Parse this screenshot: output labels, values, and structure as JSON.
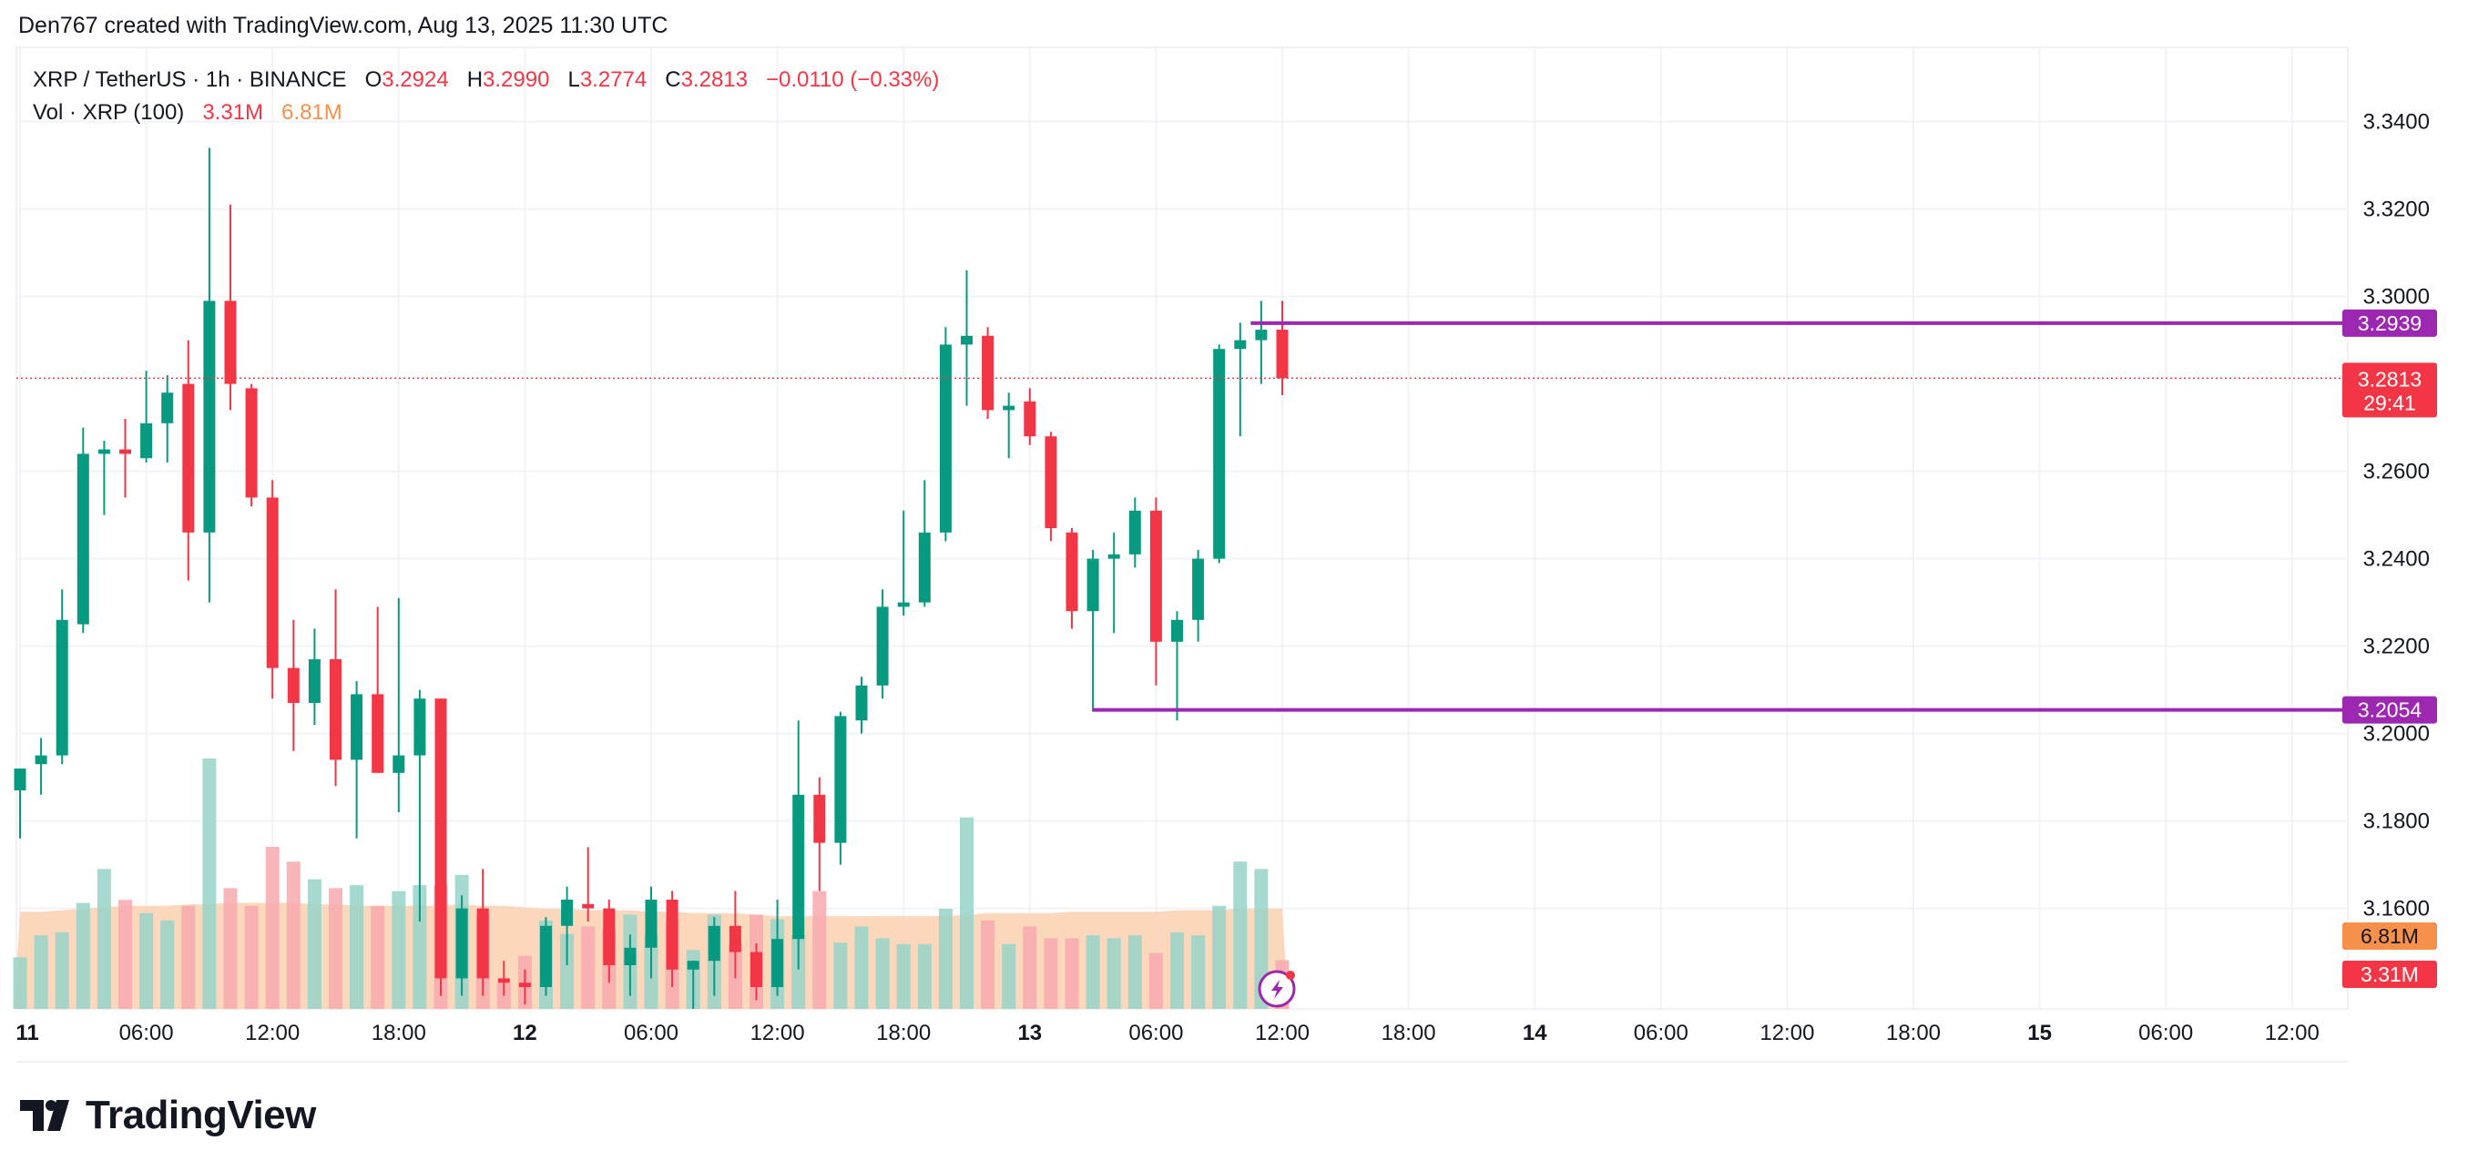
{
  "caption": "Den767 created with TradingView.com, Aug 13, 2025 11:30 UTC",
  "legend": {
    "symbol": "XRP / TetherUS · 1h · BINANCE",
    "o_label": "O",
    "o_value": "3.2924",
    "h_label": "H",
    "h_value": "3.2990",
    "l_label": "L",
    "l_value": "3.2774",
    "c_label": "C",
    "c_value": "3.2813",
    "change": "−0.0110 (−0.33%)",
    "vol_label": "Vol · XRP (100)",
    "vol_value": "3.31M",
    "vol_ma_value": "6.81M"
  },
  "brand": {
    "name": "TradingView"
  },
  "colors": {
    "up": "#089981",
    "down": "#f23645",
    "vol_up": "#97d4c9",
    "vol_down": "#f7a9ae",
    "vol_ma_fill": "#fad0b0",
    "level_line": "#9c27b0",
    "grid": "#f0f3fa",
    "text": "#131722"
  },
  "chart_data": {
    "type": "candlestick",
    "y_range": [
      3.137,
      3.357
    ],
    "y_ticks": [
      "3.3400",
      "3.3200",
      "3.3000",
      "3.2600",
      "3.2400",
      "3.2200",
      "3.2000",
      "3.1800",
      "3.1600"
    ],
    "x_ticks": [
      "11",
      "06:00",
      "12:00",
      "18:00",
      "12",
      "06:00",
      "12:00",
      "18:00",
      "13",
      "06:00",
      "12:00",
      "18:00",
      "14",
      "06:00",
      "12:00",
      "18:00",
      "15",
      "06:00",
      "12:00"
    ],
    "candles": [
      {
        "o": 3.187,
        "h": 3.192,
        "l": 3.176,
        "c": 3.192
      },
      {
        "o": 3.193,
        "h": 3.199,
        "l": 3.186,
        "c": 3.195
      },
      {
        "o": 3.195,
        "h": 3.233,
        "l": 3.193,
        "c": 3.226
      },
      {
        "o": 3.225,
        "h": 3.27,
        "l": 3.223,
        "c": 3.264
      },
      {
        "o": 3.264,
        "h": 3.267,
        "l": 3.25,
        "c": 3.265
      },
      {
        "o": 3.265,
        "h": 3.272,
        "l": 3.254,
        "c": 3.264
      },
      {
        "o": 3.263,
        "h": 3.283,
        "l": 3.262,
        "c": 3.271
      },
      {
        "o": 3.271,
        "h": 3.282,
        "l": 3.262,
        "c": 3.278
      },
      {
        "o": 3.28,
        "h": 3.29,
        "l": 3.235,
        "c": 3.246
      },
      {
        "o": 3.246,
        "h": 3.334,
        "l": 3.23,
        "c": 3.299
      },
      {
        "o": 3.299,
        "h": 3.321,
        "l": 3.274,
        "c": 3.28
      },
      {
        "o": 3.279,
        "h": 3.28,
        "l": 3.252,
        "c": 3.254
      },
      {
        "o": 3.254,
        "h": 3.258,
        "l": 3.208,
        "c": 3.215
      },
      {
        "o": 3.215,
        "h": 3.226,
        "l": 3.196,
        "c": 3.207
      },
      {
        "o": 3.207,
        "h": 3.224,
        "l": 3.202,
        "c": 3.217
      },
      {
        "o": 3.217,
        "h": 3.233,
        "l": 3.188,
        "c": 3.194
      },
      {
        "o": 3.194,
        "h": 3.212,
        "l": 3.176,
        "c": 3.209
      },
      {
        "o": 3.209,
        "h": 3.229,
        "l": 3.192,
        "c": 3.191
      },
      {
        "o": 3.191,
        "h": 3.231,
        "l": 3.182,
        "c": 3.195
      },
      {
        "o": 3.195,
        "h": 3.21,
        "l": 3.157,
        "c": 3.208
      },
      {
        "o": 3.208,
        "h": 3.208,
        "l": 3.14,
        "c": 3.144
      },
      {
        "o": 3.144,
        "h": 3.163,
        "l": 3.14,
        "c": 3.16
      },
      {
        "o": 3.16,
        "h": 3.169,
        "l": 3.14,
        "c": 3.144
      },
      {
        "o": 3.144,
        "h": 3.148,
        "l": 3.14,
        "c": 3.143
      },
      {
        "o": 3.143,
        "h": 3.146,
        "l": 3.138,
        "c": 3.142
      },
      {
        "o": 3.142,
        "h": 3.158,
        "l": 3.14,
        "c": 3.156
      },
      {
        "o": 3.156,
        "h": 3.165,
        "l": 3.147,
        "c": 3.162
      },
      {
        "o": 3.161,
        "h": 3.174,
        "l": 3.157,
        "c": 3.16
      },
      {
        "o": 3.16,
        "h": 3.162,
        "l": 3.143,
        "c": 3.147
      },
      {
        "o": 3.147,
        "h": 3.154,
        "l": 3.14,
        "c": 3.151
      },
      {
        "o": 3.151,
        "h": 3.165,
        "l": 3.144,
        "c": 3.162
      },
      {
        "o": 3.162,
        "h": 3.164,
        "l": 3.142,
        "c": 3.146
      },
      {
        "o": 3.146,
        "h": 3.148,
        "l": 3.137,
        "c": 3.148
      },
      {
        "o": 3.148,
        "h": 3.158,
        "l": 3.14,
        "c": 3.156
      },
      {
        "o": 3.156,
        "h": 3.164,
        "l": 3.144,
        "c": 3.15
      },
      {
        "o": 3.15,
        "h": 3.152,
        "l": 3.139,
        "c": 3.142
      },
      {
        "o": 3.142,
        "h": 3.162,
        "l": 3.14,
        "c": 3.153
      },
      {
        "o": 3.153,
        "h": 3.203,
        "l": 3.146,
        "c": 3.186
      },
      {
        "o": 3.186,
        "h": 3.19,
        "l": 3.164,
        "c": 3.175
      },
      {
        "o": 3.175,
        "h": 3.205,
        "l": 3.17,
        "c": 3.204
      },
      {
        "o": 3.203,
        "h": 3.213,
        "l": 3.2,
        "c": 3.211
      },
      {
        "o": 3.211,
        "h": 3.233,
        "l": 3.208,
        "c": 3.229
      },
      {
        "o": 3.229,
        "h": 3.251,
        "l": 3.227,
        "c": 3.23
      },
      {
        "o": 3.23,
        "h": 3.258,
        "l": 3.229,
        "c": 3.246
      },
      {
        "o": 3.246,
        "h": 3.293,
        "l": 3.244,
        "c": 3.289
      },
      {
        "o": 3.289,
        "h": 3.306,
        "l": 3.275,
        "c": 3.291
      },
      {
        "o": 3.291,
        "h": 3.293,
        "l": 3.272,
        "c": 3.274
      },
      {
        "o": 3.274,
        "h": 3.278,
        "l": 3.263,
        "c": 3.275
      },
      {
        "o": 3.276,
        "h": 3.279,
        "l": 3.266,
        "c": 3.268
      },
      {
        "o": 3.268,
        "h": 3.269,
        "l": 3.244,
        "c": 3.247
      },
      {
        "o": 3.246,
        "h": 3.247,
        "l": 3.224,
        "c": 3.228
      },
      {
        "o": 3.228,
        "h": 3.242,
        "l": 3.205,
        "c": 3.24
      },
      {
        "o": 3.24,
        "h": 3.246,
        "l": 3.223,
        "c": 3.241
      },
      {
        "o": 3.241,
        "h": 3.254,
        "l": 3.238,
        "c": 3.251
      },
      {
        "o": 3.251,
        "h": 3.254,
        "l": 3.211,
        "c": 3.221
      },
      {
        "o": 3.221,
        "h": 3.228,
        "l": 3.203,
        "c": 3.226
      },
      {
        "o": 3.226,
        "h": 3.242,
        "l": 3.221,
        "c": 3.24
      },
      {
        "o": 3.24,
        "h": 3.289,
        "l": 3.239,
        "c": 3.288
      },
      {
        "o": 3.288,
        "h": 3.294,
        "l": 3.268,
        "c": 3.29
      },
      {
        "o": 3.29,
        "h": 3.299,
        "l": 3.28,
        "c": 3.2924
      },
      {
        "o": 3.2924,
        "h": 3.299,
        "l": 3.2774,
        "c": 3.2813
      }
    ],
    "volume": {
      "label": "Vol · XRP (100)",
      "max": 17.0,
      "bars": [
        3.5,
        5.0,
        5.2,
        7.2,
        9.5,
        7.4,
        6.5,
        6.0,
        7.0,
        17.0,
        8.2,
        7.0,
        11.0,
        10.0,
        8.8,
        8.2,
        8.4,
        7.0,
        8.0,
        8.4,
        8.4,
        9.1,
        6.4,
        1.8,
        3.6,
        6.0,
        5.1,
        5.6,
        5.4,
        6.4,
        5.0,
        6.0,
        4.0,
        6.4,
        4.4,
        6.4,
        6.1,
        5.0,
        8.0,
        4.5,
        5.6,
        4.8,
        4.4,
        4.4,
        6.8,
        13.0,
        6.0,
        4.4,
        5.6,
        4.8,
        4.8,
        5.0,
        4.8,
        5.0,
        3.8,
        5.2,
        5.0,
        7.0,
        10.0,
        9.5,
        3.31
      ],
      "ma": [
        6.6,
        6.6,
        6.7,
        6.8,
        6.9,
        7.0,
        7.0,
        7.0,
        7.1,
        7.1,
        7.2,
        7.2,
        7.2,
        7.2,
        7.1,
        7.1,
        7.0,
        7.0,
        7.0,
        7.0,
        7.0,
        7.1,
        7.0,
        7.0,
        6.9,
        6.8,
        6.8,
        6.7,
        6.7,
        6.7,
        6.6,
        6.6,
        6.5,
        6.5,
        6.5,
        6.4,
        6.3,
        6.3,
        6.3,
        6.3,
        6.3,
        6.3,
        6.3,
        6.3,
        6.3,
        6.4,
        6.5,
        6.5,
        6.5,
        6.5,
        6.6,
        6.6,
        6.6,
        6.6,
        6.6,
        6.7,
        6.7,
        6.7,
        6.8,
        6.8,
        6.81
      ]
    },
    "horizontal_levels": [
      {
        "value": 3.2939,
        "label": "3.2939",
        "start_candle": 58.5
      },
      {
        "value": 3.2054,
        "label": "3.2054",
        "start_candle": 51
      }
    ],
    "last_price": {
      "value": 3.2813,
      "label": "3.2813",
      "countdown": "29:41"
    },
    "vol_badges": [
      {
        "label": "6.81M",
        "color": "#f7904a"
      },
      {
        "label": "3.31M",
        "color": "#f23645"
      }
    ]
  }
}
